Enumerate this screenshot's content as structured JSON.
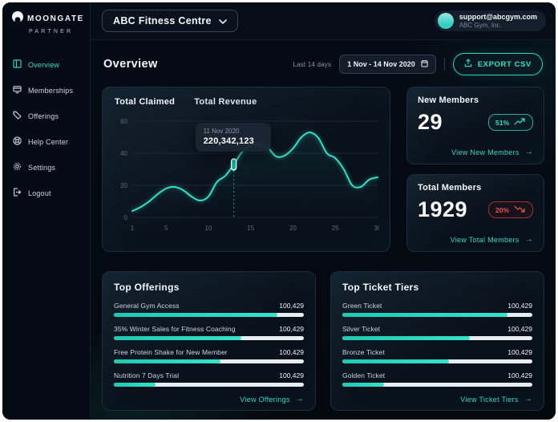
{
  "brand": {
    "name": "MOONGATE",
    "tagline": "PARTNER"
  },
  "topbar": {
    "org_selector": "ABC Fitness Centre",
    "user": {
      "email": "support@abcgym.com",
      "company": "ABC Gym, Inc."
    }
  },
  "sidebar": {
    "items": [
      {
        "label": "Overview",
        "icon": "overview-icon",
        "active": true
      },
      {
        "label": "Memberships",
        "icon": "memberships-icon",
        "active": false
      },
      {
        "label": "Offerings",
        "icon": "offerings-icon",
        "active": false
      },
      {
        "label": "Help Center",
        "icon": "help-center-icon",
        "active": false
      },
      {
        "label": "Settings",
        "icon": "settings-icon",
        "active": false
      },
      {
        "label": "Logout",
        "icon": "logout-icon",
        "active": false
      }
    ]
  },
  "header": {
    "title": "Overview",
    "range_label": "Last 14 days",
    "date_range": "1 Nov - 14 Nov 2020",
    "export_label": "EXPORT CSV"
  },
  "chart_card": {
    "tabs": [
      "Total Claimed",
      "Total Revenue"
    ],
    "tooltip": {
      "date": "11 Nov 2020",
      "value": "220,342,123"
    }
  },
  "chart_data": {
    "type": "line",
    "title": "Total Claimed / Total Revenue",
    "x": [
      1,
      2,
      3,
      4,
      5,
      6,
      7,
      8,
      9,
      10,
      11,
      12,
      13,
      14,
      15,
      16,
      17,
      18,
      19,
      20,
      21,
      22,
      23,
      24,
      25,
      26,
      27,
      28,
      29,
      30
    ],
    "series": [
      {
        "name": "Total Claimed",
        "values": [
          4,
          6.5,
          10,
          14.5,
          18,
          19,
          17,
          13,
          10.5,
          13,
          22,
          26,
          33,
          41,
          45,
          45.5,
          43.5,
          38,
          38.5,
          43,
          50,
          53,
          49.5,
          40,
          37,
          30,
          20,
          19,
          23.5,
          25
        ]
      }
    ],
    "ylim": [
      0,
      60
    ],
    "yticks": [
      0,
      20,
      40,
      60
    ],
    "xticks": [
      1,
      5,
      10,
      15,
      20,
      25,
      30
    ],
    "grid": "horizontal",
    "line_color": "#33e0c9",
    "highlight": {
      "x": 13,
      "y": 33,
      "date": "11 Nov 2020",
      "value": "220,342,123"
    }
  },
  "stats": [
    {
      "title": "New Members",
      "value": "29",
      "badge": "51%",
      "trend": "up",
      "link": "View New Members"
    },
    {
      "title": "Total Members",
      "value": "1929",
      "badge": "20%",
      "trend": "down",
      "link": "View Total Members"
    }
  ],
  "offerings": {
    "title": "Top Offerings",
    "link": "View Offerings",
    "items": [
      {
        "label": "General Gym Access",
        "value": "100,429",
        "pct": 86
      },
      {
        "label": "35% Winter Sales for Fitness Coaching",
        "value": "100,429",
        "pct": 67
      },
      {
        "label": "Free Protein Shake for New Member",
        "value": "100,429",
        "pct": 56
      },
      {
        "label": "Nutrition 7 Days Trial",
        "value": "100,429",
        "pct": 22
      }
    ]
  },
  "tiers": {
    "title": "Top Ticket Tiers",
    "link": "View Ticket Tiers",
    "items": [
      {
        "label": "Green Ticket",
        "value": "100,429",
        "pct": 87
      },
      {
        "label": "Silver Ticket",
        "value": "100,429",
        "pct": 67
      },
      {
        "label": "Bronze Ticket",
        "value": "100,429",
        "pct": 56
      },
      {
        "label": "Golden Ticket",
        "value": "100,429",
        "pct": 22
      }
    ]
  },
  "colors": {
    "accent": "#2fe0c8",
    "danger": "#f0524a",
    "card_border": "#1e2c3b",
    "background": "#050b14"
  }
}
